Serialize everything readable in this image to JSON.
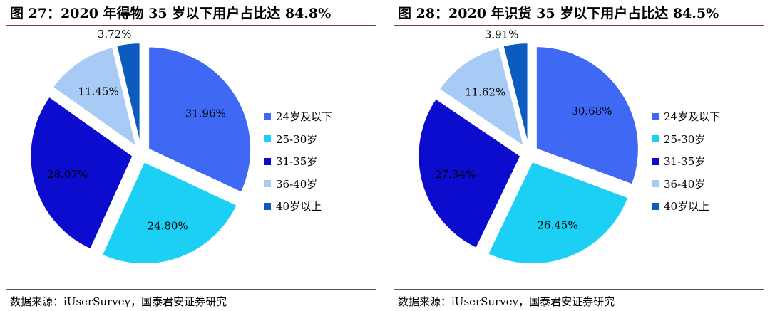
{
  "source_label": "数据来源：iUserSurvey，国泰君安证券研究",
  "chart_data": [
    {
      "type": "pie",
      "title": "图 27：2020 年得物 35 岁以下用户占比达 84.8%",
      "categories": [
        "24岁及以下",
        "25-30岁",
        "31-35岁",
        "36-40岁",
        "40岁以上"
      ],
      "values": [
        31.96,
        24.8,
        28.07,
        11.45,
        3.72
      ],
      "labels": [
        "31.96%",
        "24.80%",
        "28.07%",
        "11.45%",
        "3.72%"
      ],
      "colors": [
        "#3f68f5",
        "#1ccff5",
        "#0c0ccf",
        "#a8cbf5",
        "#0c5cbf"
      ],
      "legend_position": "right"
    },
    {
      "type": "pie",
      "title": "图 28：2020 年识货 35 岁以下用户占比达 84.5%",
      "categories": [
        "24岁及以下",
        "25-30岁",
        "31-35岁",
        "36-40岁",
        "40岁以上"
      ],
      "values": [
        30.68,
        26.45,
        27.34,
        11.62,
        3.91
      ],
      "labels": [
        "30.68%",
        "26.45%",
        "27.34%",
        "11.62%",
        "3.91%"
      ],
      "colors": [
        "#3f68f5",
        "#1ccff5",
        "#0c0ccf",
        "#a8cbf5",
        "#0c5cbf"
      ],
      "legend_position": "right"
    }
  ]
}
